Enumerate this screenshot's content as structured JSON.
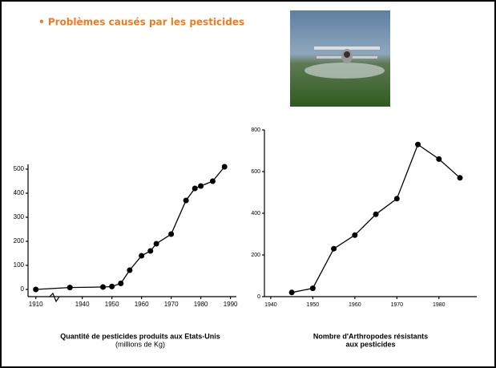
{
  "slide_title": "• Problèmes causés par les pesticides",
  "chart_data": [
    {
      "type": "line",
      "title_lines": [
        "Quantité de pesticides produits aux Etats-Unis"
      ],
      "subtitle": "(millions de Kg)",
      "x": [
        1910,
        1932,
        1947,
        1950,
        1953,
        1956,
        1960,
        1963,
        1965,
        1970,
        1975,
        1978,
        1980,
        1984,
        1988
      ],
      "values": [
        0,
        8,
        10,
        12,
        25,
        80,
        140,
        160,
        190,
        230,
        370,
        420,
        430,
        450,
        510
      ],
      "color": "#000000",
      "xlim": [
        1905,
        1992
      ],
      "xticks": [
        1910,
        1940,
        1950,
        1960,
        1970,
        1980,
        1990
      ],
      "ylim": [
        -30,
        520
      ],
      "yticks": [
        0,
        100,
        200,
        300,
        400,
        500
      ],
      "axis_break": true
    },
    {
      "type": "line",
      "title_lines": [
        "Nombre d'Arthropodes résistants",
        "aux pesticides"
      ],
      "x": [
        1945,
        1950,
        1955,
        1960,
        1965,
        1970,
        1975,
        1980,
        1985
      ],
      "values": [
        20,
        40,
        230,
        295,
        395,
        470,
        730,
        660,
        570
      ],
      "color": "#000000",
      "xlim": [
        1938.5,
        1989
      ],
      "xticks": [
        1940,
        1950,
        1960,
        1970,
        1980
      ],
      "ylim": [
        0,
        800
      ],
      "yticks": [
        0,
        200,
        400,
        600,
        800
      ],
      "axis_break": false
    }
  ]
}
